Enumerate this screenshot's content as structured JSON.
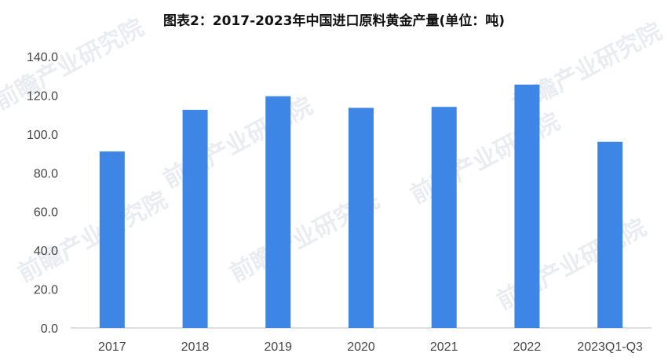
{
  "chart_data": {
    "type": "bar",
    "title": "图表2：2017-2023年中国进口原料黄金产量(单位：吨)",
    "categories": [
      "2017",
      "2018",
      "2019",
      "2020",
      "2021",
      "2022",
      "2023Q1-Q3"
    ],
    "values": [
      91.0,
      112.5,
      119.5,
      113.5,
      114.0,
      125.5,
      96.0
    ],
    "ylim": [
      0,
      140
    ],
    "yticks": [
      "0.0",
      "20.0",
      "40.0",
      "60.0",
      "80.0",
      "100.0",
      "120.0",
      "140.0"
    ],
    "bar_color": "#3d86e6",
    "grid": false,
    "legend": "none"
  },
  "watermark": {
    "text": "前瞻产业研究院"
  }
}
